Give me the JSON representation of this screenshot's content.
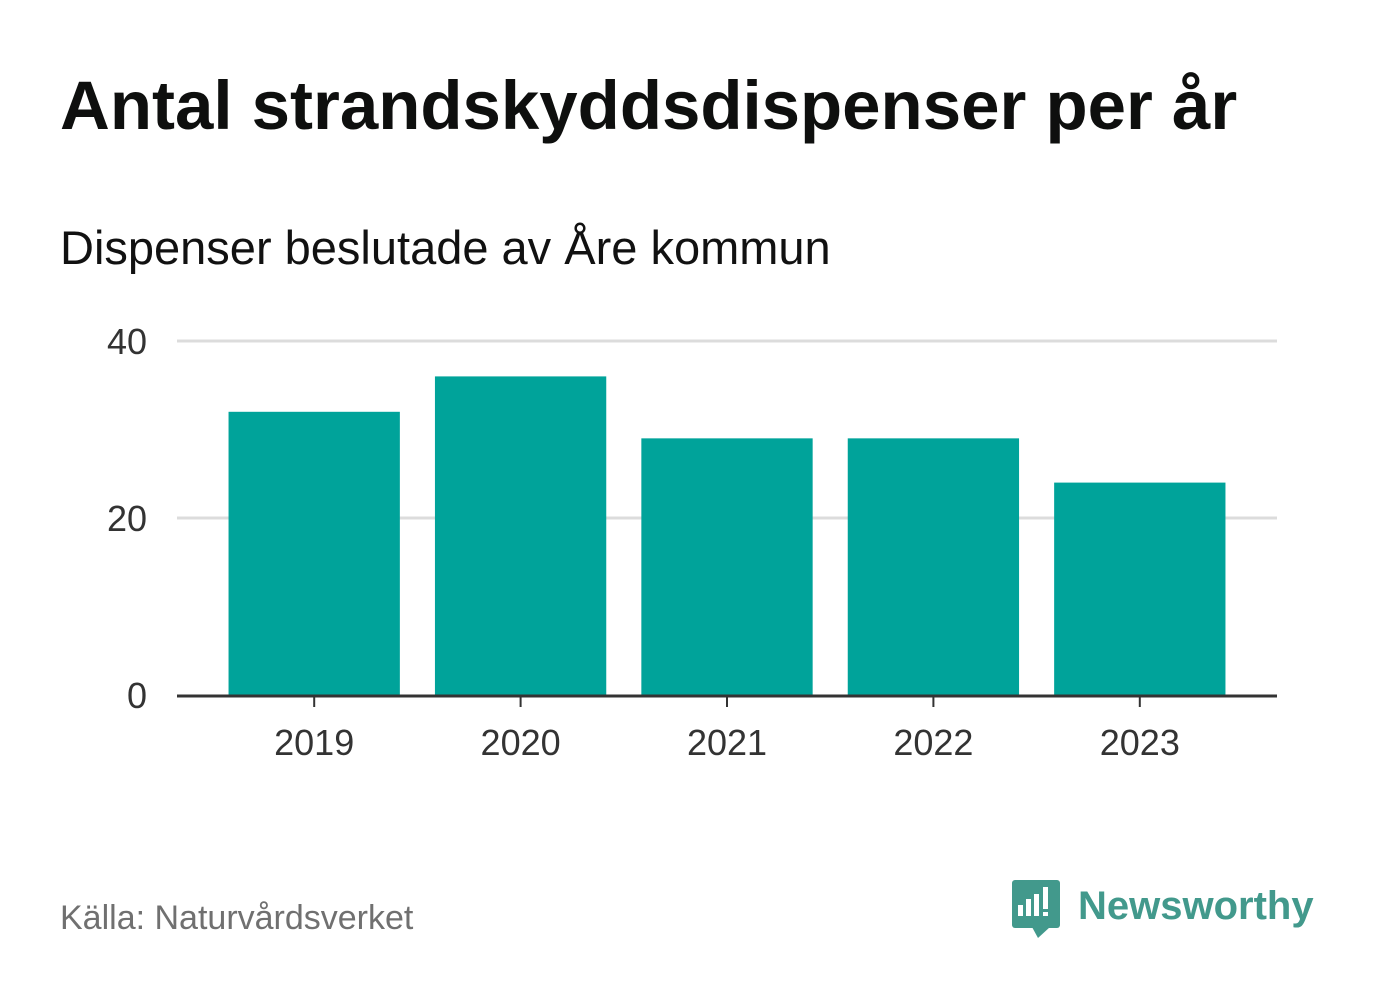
{
  "chart_data": {
    "type": "bar",
    "title": "Antal strandskyddsdispenser per år",
    "subtitle": "Dispenser beslutade av Åre kommun",
    "categories": [
      "2019",
      "2020",
      "2021",
      "2022",
      "2023"
    ],
    "values": [
      32,
      36,
      29,
      29,
      24
    ],
    "ylim": [
      0,
      40
    ],
    "yticks": [
      0,
      20,
      40
    ],
    "ytick_labels": [
      "0",
      "20",
      "40"
    ],
    "grid": true,
    "bar_color": "#00a39a"
  },
  "footer": {
    "source": "Källa: Naturvårdsverket"
  },
  "brand": {
    "name": "Newsworthy",
    "icon": "newsworthy-logo-icon",
    "color": "#42998c"
  }
}
